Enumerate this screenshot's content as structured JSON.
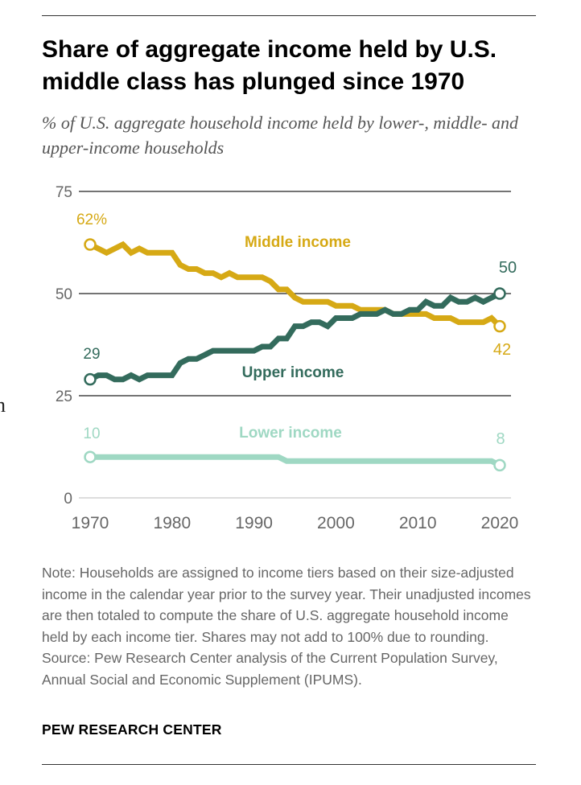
{
  "header": {
    "title": "Share of aggregate income held by U.S. middle class has plunged since 1970",
    "subtitle": "% of U.S. aggregate household income held by lower-, middle- and upper-income households"
  },
  "stray_text": "n",
  "chart_data": {
    "type": "line",
    "title": "Share of aggregate income held by U.S. middle class has plunged since 1970",
    "subtitle": "% of U.S. aggregate household income held by lower-, middle- and upper-income households",
    "xlabel": "",
    "ylabel": "",
    "xlim": [
      1970,
      2020
    ],
    "ylim": [
      0,
      75
    ],
    "x_ticks": [
      1970,
      1980,
      1990,
      2000,
      2010,
      2020
    ],
    "x_tick_labels": [
      "1970",
      "1980",
      "1990",
      "2000",
      "2010",
      "2020"
    ],
    "y_ticks": [
      0,
      25,
      50,
      75
    ],
    "y_tick_labels": [
      "0",
      "25",
      "50",
      "75"
    ],
    "grid": "horizontal at y tick values",
    "legend": "direct labels on lines",
    "x": [
      1970,
      1971,
      1972,
      1973,
      1974,
      1975,
      1976,
      1977,
      1978,
      1979,
      1980,
      1981,
      1982,
      1983,
      1984,
      1985,
      1986,
      1987,
      1988,
      1989,
      1990,
      1991,
      1992,
      1993,
      1994,
      1995,
      1996,
      1997,
      1998,
      1999,
      2000,
      2001,
      2002,
      2003,
      2004,
      2005,
      2006,
      2007,
      2008,
      2009,
      2010,
      2011,
      2012,
      2013,
      2014,
      2015,
      2016,
      2017,
      2018,
      2019,
      2020
    ],
    "series": [
      {
        "name": "Middle income",
        "color": "#d6a915",
        "start_label": "62%",
        "end_label": "42",
        "values": [
          62,
          61,
          60,
          61,
          62,
          60,
          61,
          60,
          60,
          60,
          60,
          57,
          56,
          56,
          55,
          55,
          54,
          55,
          54,
          54,
          54,
          54,
          53,
          51,
          51,
          49,
          48,
          48,
          48,
          48,
          47,
          47,
          47,
          46,
          46,
          46,
          46,
          45,
          45,
          45,
          45,
          45,
          44,
          44,
          44,
          43,
          43,
          43,
          43,
          44,
          42
        ]
      },
      {
        "name": "Upper income",
        "color": "#336b5c",
        "start_label": "29",
        "end_label": "50",
        "values": [
          29,
          30,
          30,
          29,
          29,
          30,
          29,
          30,
          30,
          30,
          30,
          33,
          34,
          34,
          35,
          36,
          36,
          36,
          36,
          36,
          36,
          37,
          37,
          39,
          39,
          42,
          42,
          43,
          43,
          42,
          44,
          44,
          44,
          45,
          45,
          45,
          46,
          45,
          45,
          46,
          46,
          48,
          47,
          47,
          49,
          48,
          48,
          49,
          48,
          49,
          50
        ]
      },
      {
        "name": "Lower income",
        "color": "#9fd8c3",
        "start_label": "10",
        "end_label": "8",
        "values": [
          10,
          10,
          10,
          10,
          10,
          10,
          10,
          10,
          10,
          10,
          10,
          10,
          10,
          10,
          10,
          10,
          10,
          10,
          10,
          10,
          10,
          10,
          10,
          10,
          9,
          9,
          9,
          9,
          9,
          9,
          9,
          9,
          9,
          9,
          9,
          9,
          9,
          9,
          9,
          9,
          9,
          9,
          9,
          9,
          9,
          9,
          9,
          9,
          9,
          9,
          8
        ]
      }
    ]
  },
  "note": "Note: Households are assigned to income tiers based on their size-adjusted income in the calendar year prior to the survey year. Their unadjusted incomes are then totaled to compute the share of U.S. aggregate household income held by each income tier. Shares may not add to 100% due to rounding.",
  "source": "Source: Pew Research Center analysis of the Current Population Survey, Annual Social and Economic Supplement (IPUMS).",
  "brand": "PEW RESEARCH CENTER"
}
